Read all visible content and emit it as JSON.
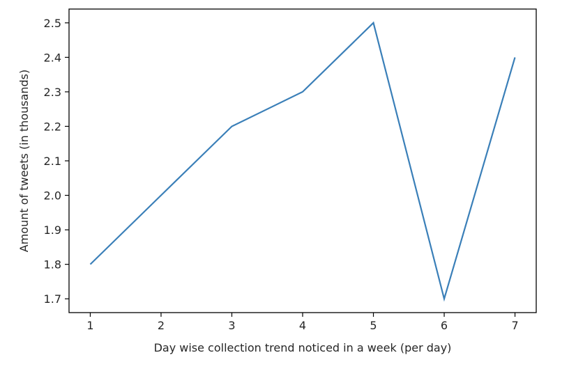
{
  "chart_data": {
    "type": "line",
    "title": "",
    "xlabel": "Day wise collection trend noticed in a week (per day)",
    "ylabel": "Amount of tweets (in thousands)",
    "x": [
      1,
      2,
      3,
      4,
      5,
      6,
      7
    ],
    "series": [
      {
        "values": [
          1.8,
          2.0,
          2.2,
          2.3,
          2.5,
          1.7,
          2.4
        ],
        "color": "#3a7fb8"
      }
    ],
    "xlim": [
      0.7,
      7.3
    ],
    "ylim": [
      1.66,
      2.54
    ],
    "xticks": [
      1,
      2,
      3,
      4,
      5,
      6,
      7
    ],
    "xtick_labels": [
      "1",
      "2",
      "3",
      "4",
      "5",
      "6",
      "7"
    ],
    "yticks": [
      1.7,
      1.8,
      1.9,
      2.0,
      2.1,
      2.2,
      2.3,
      2.4,
      2.5
    ],
    "ytick_labels": [
      "1.7",
      "1.8",
      "1.9",
      "2.0",
      "2.1",
      "2.2",
      "2.3",
      "2.4",
      "2.5"
    ],
    "grid": false,
    "legend": "none"
  }
}
